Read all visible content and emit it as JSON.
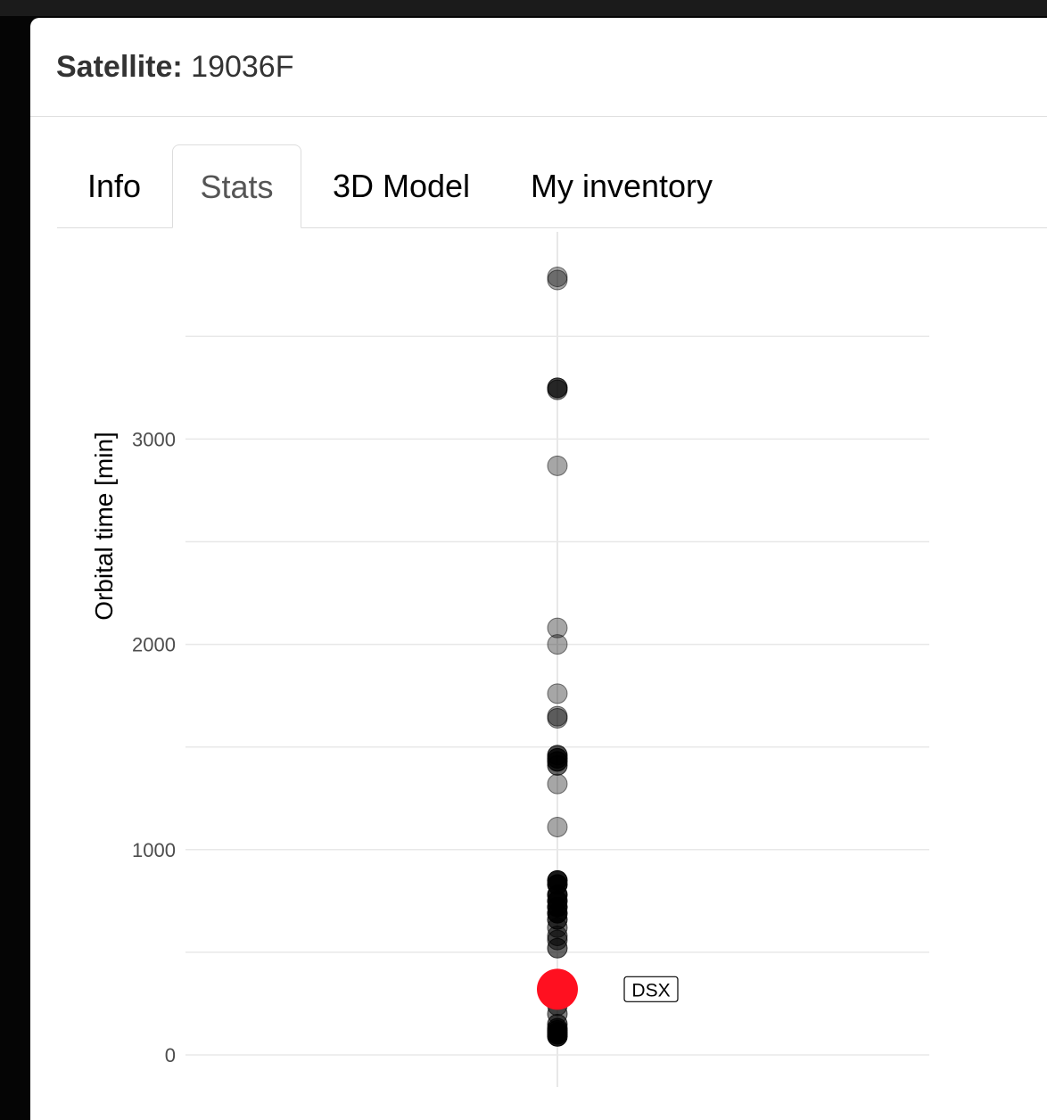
{
  "modal": {
    "title_label": "Satellite:",
    "title_value": "19036F"
  },
  "tabs": [
    {
      "label": "Info",
      "active": false
    },
    {
      "label": "Stats",
      "active": true
    },
    {
      "label": "3D Model",
      "active": false
    },
    {
      "label": "My inventory",
      "active": false
    }
  ],
  "colors": {
    "highlight": "#ff1020",
    "point": "#000000",
    "grid": "#e8e8e8"
  },
  "chart_data": {
    "type": "scatter",
    "ylabel": "Orbital time [min]",
    "ylim": [
      -140,
      3880
    ],
    "yticks": [
      0,
      1000,
      2000,
      3000
    ],
    "grid": true,
    "x_categories": 1,
    "points": [
      {
        "y": 3790,
        "alpha": 0.35
      },
      {
        "y": 3775,
        "alpha": 0.35
      },
      {
        "y": 3250,
        "alpha": 0.7
      },
      {
        "y": 3240,
        "alpha": 0.5
      },
      {
        "y": 2870,
        "alpha": 0.35
      },
      {
        "y": 2080,
        "alpha": 0.35
      },
      {
        "y": 2000,
        "alpha": 0.35
      },
      {
        "y": 1760,
        "alpha": 0.35
      },
      {
        "y": 1650,
        "alpha": 0.4
      },
      {
        "y": 1640,
        "alpha": 0.4
      },
      {
        "y": 1460,
        "alpha": 0.7
      },
      {
        "y": 1445,
        "alpha": 0.8
      },
      {
        "y": 1430,
        "alpha": 0.8
      },
      {
        "y": 1410,
        "alpha": 0.6
      },
      {
        "y": 1320,
        "alpha": 0.35
      },
      {
        "y": 1110,
        "alpha": 0.35
      },
      {
        "y": 850,
        "alpha": 0.9
      },
      {
        "y": 830,
        "alpha": 0.9
      },
      {
        "y": 780,
        "alpha": 0.9
      },
      {
        "y": 750,
        "alpha": 0.9
      },
      {
        "y": 720,
        "alpha": 0.9
      },
      {
        "y": 690,
        "alpha": 0.9
      },
      {
        "y": 660,
        "alpha": 0.7
      },
      {
        "y": 620,
        "alpha": 0.5
      },
      {
        "y": 580,
        "alpha": 0.5
      },
      {
        "y": 560,
        "alpha": 0.5
      },
      {
        "y": 520,
        "alpha": 0.6
      },
      {
        "y": 240,
        "alpha": 0.5
      },
      {
        "y": 200,
        "alpha": 0.5
      },
      {
        "y": 150,
        "alpha": 0.6
      },
      {
        "y": 130,
        "alpha": 0.7
      },
      {
        "y": 120,
        "alpha": 0.8
      },
      {
        "y": 110,
        "alpha": 0.9
      },
      {
        "y": 100,
        "alpha": 0.9
      },
      {
        "y": 90,
        "alpha": 0.9
      }
    ],
    "highlight": {
      "y": 320,
      "label": "DSX"
    }
  }
}
